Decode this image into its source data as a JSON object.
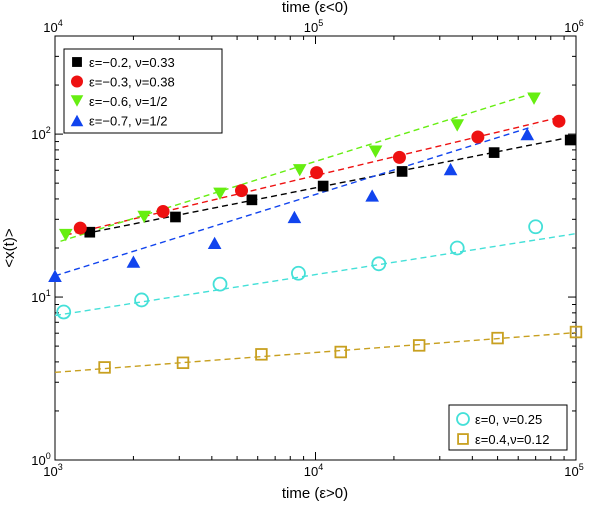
{
  "chart_data": {
    "type": "scatter",
    "scale": "log-log",
    "x_bottom_label": "time (ε>0)",
    "x_top_label": "time (ε<0)",
    "y_label": "<x(t)>",
    "x_bottom_range": [
      1000,
      100000
    ],
    "x_top_range": [
      10000,
      1000000
    ],
    "y_range": [
      1,
      400
    ],
    "x_bottom_ticks": [
      {
        "base": "10",
        "exp": "3",
        "value": 1000
      },
      {
        "base": "10",
        "exp": "4",
        "value": 10000
      },
      {
        "base": "10",
        "exp": "5",
        "value": 100000
      }
    ],
    "x_top_ticks": [
      {
        "base": "10",
        "exp": "4",
        "value": 10000
      },
      {
        "base": "10",
        "exp": "5",
        "value": 100000
      },
      {
        "base": "10",
        "exp": "6",
        "value": 1000000
      }
    ],
    "y_ticks": [
      {
        "base": "10",
        "exp": "0",
        "value": 1
      },
      {
        "base": "10",
        "exp": "1",
        "value": 10
      },
      {
        "base": "10",
        "exp": "2",
        "value": 100
      }
    ],
    "legend_top": {
      "placement": "top-left"
    },
    "legend_bottom": {
      "placement": "bottom-right"
    },
    "series": [
      {
        "name": "ε=−0.2, ν=0.33",
        "axis": "top",
        "marker": "square",
        "filled": true,
        "color": "#000000",
        "line_color": "#000000",
        "x": [
          13600,
          29000,
          57000,
          107000,
          215000,
          485000,
          950000
        ],
        "y": [
          25,
          31,
          39.5,
          48,
          59,
          77,
          92
        ],
        "fit": {
          "x": [
            13000,
            960000
          ],
          "y": [
            24.5,
            96
          ]
        }
      },
      {
        "name": "ε=−0.3, ν=0.38",
        "axis": "top",
        "marker": "circle",
        "filled": true,
        "color": "#ee1111",
        "line_color": "#ee1111",
        "x": [
          12500,
          26000,
          52000,
          101000,
          210000,
          420000,
          860000
        ],
        "y": [
          26.5,
          33.5,
          45,
          58,
          72,
          96,
          120
        ],
        "fit": {
          "x": [
            11000,
            870000
          ],
          "y": [
            24,
            127
          ]
        }
      },
      {
        "name": "ε=−0.6, ν=1/2",
        "axis": "top",
        "marker": "triangle-down",
        "filled": true,
        "color": "#66ee11",
        "line_color": "#66ee11",
        "x": [
          11000,
          22000,
          43000,
          87000,
          170000,
          350000,
          690000
        ],
        "y": [
          24,
          31,
          43,
          60,
          78,
          113,
          165
        ],
        "fit": {
          "x": [
            10500,
            700000
          ],
          "y": [
            22,
            180
          ]
        }
      },
      {
        "name": "ε=−0.7, ν=1/2",
        "axis": "top",
        "marker": "triangle-up",
        "filled": true,
        "color": "#1144ee",
        "line_color": "#1144ee",
        "x": [
          10000,
          20000,
          41000,
          83000,
          165000,
          330000,
          650000
        ],
        "y": [
          13.5,
          16.5,
          21.5,
          31,
          42,
          61,
          100
        ],
        "fit": {
          "x": [
            10000,
            680000
          ],
          "y": [
            13.5,
            111
          ]
        }
      },
      {
        "name": "ε=0, ν=0.25",
        "axis": "bottom",
        "marker": "circle",
        "filled": false,
        "color": "#44e0d8",
        "line_color": "#44e0d8",
        "x": [
          1080,
          2150,
          4300,
          8600,
          17500,
          35000,
          70000
        ],
        "y": [
          8.1,
          9.6,
          12,
          14,
          16,
          20,
          27
        ],
        "fit": {
          "x": [
            1000,
            100000
          ],
          "y": [
            7.7,
            24.5
          ]
        }
      },
      {
        "name": "ε=0.4,ν=0.12",
        "axis": "bottom",
        "marker": "square",
        "filled": false,
        "color": "#c8a020",
        "line_color": "#c8a020",
        "x": [
          1550,
          3100,
          6200,
          12500,
          25000,
          50000,
          100000
        ],
        "y": [
          3.7,
          3.95,
          4.45,
          4.6,
          5.05,
          5.6,
          6.1
        ],
        "fit": {
          "x": [
            1000,
            100000
          ],
          "y": [
            3.45,
            6.05
          ]
        }
      }
    ]
  }
}
